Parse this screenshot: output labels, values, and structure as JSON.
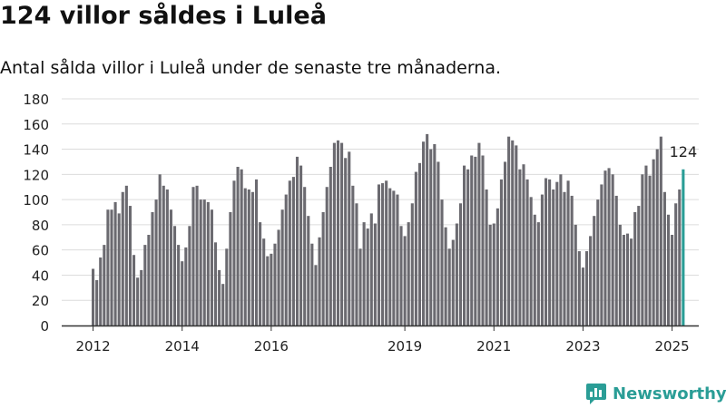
{
  "title": "124 villor såldes i Luleå",
  "subtitle": "Antal sålda villor i Luleå under de senaste tre månaderna.",
  "brand": "Newsworthy",
  "colors": {
    "bar": "#6b6a70",
    "highlight": "#2a9d96",
    "grid": "#dcdcdc",
    "axis": "#333333",
    "brand": "#2a9d96"
  },
  "chart_data": {
    "type": "bar",
    "ylim": [
      0,
      180
    ],
    "yticks": [
      0,
      20,
      40,
      60,
      80,
      100,
      120,
      140,
      160,
      180
    ],
    "grid": true,
    "x_start_year": 2012,
    "xticks": [
      {
        "label": "2012",
        "index": 0
      },
      {
        "label": "2014",
        "index": 24
      },
      {
        "label": "2016",
        "index": 48
      },
      {
        "label": "2019",
        "index": 84
      },
      {
        "label": "2021",
        "index": 108
      },
      {
        "label": "2023",
        "index": 132
      },
      {
        "label": "2025",
        "index": 156
      }
    ],
    "values": [
      45,
      36,
      54,
      64,
      92,
      92,
      98,
      89,
      106,
      111,
      95,
      56,
      38,
      44,
      64,
      72,
      90,
      100,
      120,
      111,
      108,
      92,
      79,
      64,
      51,
      62,
      79,
      110,
      111,
      100,
      100,
      98,
      92,
      66,
      44,
      33,
      61,
      90,
      115,
      126,
      124,
      109,
      108,
      106,
      116,
      82,
      69,
      55,
      57,
      65,
      76,
      92,
      104,
      115,
      118,
      134,
      127,
      110,
      87,
      65,
      48,
      70,
      90,
      110,
      126,
      145,
      147,
      145,
      133,
      138,
      111,
      97,
      61,
      82,
      77,
      89,
      81,
      112,
      113,
      115,
      109,
      107,
      104,
      79,
      71,
      82,
      97,
      122,
      129,
      146,
      152,
      140,
      144,
      130,
      100,
      78,
      61,
      68,
      81,
      97,
      127,
      124,
      135,
      134,
      145,
      135,
      108,
      80,
      81,
      93,
      116,
      130,
      150,
      147,
      143,
      124,
      128,
      116,
      102,
      88,
      82,
      104,
      117,
      116,
      108,
      114,
      120,
      106,
      115,
      103,
      80,
      59,
      46,
      59,
      71,
      87,
      100,
      112,
      123,
      125,
      120,
      103,
      80,
      72,
      73,
      69,
      90,
      95,
      120,
      127,
      119,
      132,
      140,
      150,
      106,
      88,
      72,
      97,
      108,
      124
    ],
    "highlight": {
      "index": 159,
      "label": "124"
    }
  }
}
